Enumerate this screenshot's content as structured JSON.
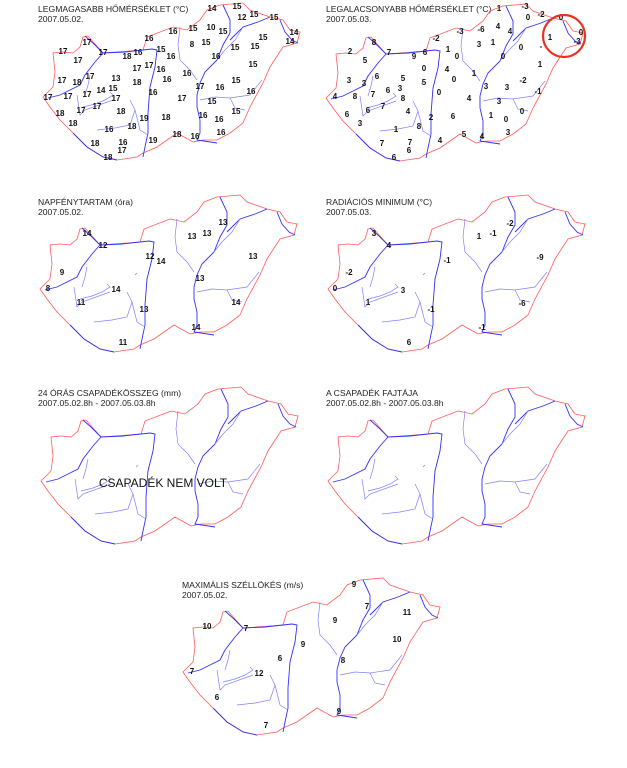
{
  "colors": {
    "border": "#ff5a5a",
    "river": "#3030ff",
    "highlight_circle": "#e8321e"
  },
  "panels": [
    {
      "title": "LEGMAGASABB HŐMÉRSÉKLET (°C)",
      "date": "2007.05.02.",
      "labels": [
        "14",
        "15",
        "12",
        "15",
        "15",
        "14",
        "14",
        "16",
        "15",
        "10",
        "15",
        "15",
        "8",
        "15",
        "15",
        "15",
        "16",
        "15",
        "16",
        "16",
        "17",
        "17",
        "17",
        "16",
        "18",
        "17",
        "17",
        "17",
        "16",
        "15",
        "16",
        "17",
        "13",
        "17",
        "18",
        "18",
        "16",
        "15",
        "17",
        "16",
        "14",
        "15",
        "16",
        "16",
        "17",
        "17",
        "17",
        "17",
        "17",
        "15",
        "17",
        "17",
        "18",
        "15",
        "18",
        "16",
        "16",
        "19",
        "18",
        "18",
        "18",
        "16",
        "16",
        "18",
        "16",
        "19",
        "18",
        "16",
        "17",
        "18"
      ]
    },
    {
      "title": "LEGALACSONYABB HŐMÉRSÉKLET (°C)",
      "date": "2007.05.03.",
      "labels": [
        "1",
        "-3",
        "0",
        "-2",
        "0",
        "0",
        "-3",
        "1",
        "-2",
        "-3",
        "-6",
        "4",
        "4",
        "3",
        "1",
        "0",
        "-",
        "8",
        "2",
        "7",
        "9",
        "6",
        "1",
        "0",
        "0",
        "5",
        "0",
        "4",
        "1",
        "1",
        "6",
        "5",
        "3",
        "3",
        "5",
        "0",
        "-2",
        "3",
        "3",
        "6",
        "3",
        "0",
        "-1",
        "4",
        "8",
        "7",
        "8",
        "4",
        "3",
        "6",
        "7",
        "4",
        "0",
        "6",
        "1",
        "0",
        "2",
        "6",
        "3",
        "8",
        "1",
        "3",
        "5",
        "4",
        "4",
        "7",
        "7",
        "6",
        "6"
      ],
      "highlight": "red-circle"
    },
    {
      "title": "NAPFÉNYTARTAM (óra)",
      "date": "2007.05.02.",
      "labels": [
        "14",
        "12",
        "12",
        "14",
        "13",
        "13",
        "13",
        "13",
        "9",
        "13",
        "8",
        "14",
        "11",
        "13",
        "14",
        "14",
        "11"
      ]
    },
    {
      "title": "RADIÁCIÓS MINIMUM (°C)",
      "date": "2007.05.03.",
      "labels": [
        "3",
        "4",
        "-2",
        "1",
        "-1",
        "-1",
        "-9",
        "-2",
        "0",
        "3",
        "1",
        "-1",
        "-6",
        "-1",
        "6"
      ]
    },
    {
      "title": "24 ÓRÁS CSAPADÉKÖSSZEG (mm)",
      "date": "2007.05.02.8h - 2007.05.03.8h",
      "note": "CSAPADÉK NEM VOLT",
      "labels": []
    },
    {
      "title": "A CSAPADÉK FAJTÁJA",
      "date": "2007.05.02.8h - 2007.05.03.8h",
      "labels": []
    },
    {
      "title": "MAXIMÁLIS SZÉLLÖKÉS (m/s)",
      "date": "2007.05.02.",
      "labels": [
        "9",
        "7",
        "11",
        "10",
        "7",
        "9",
        "10",
        "9",
        "6",
        "8",
        "7",
        "12",
        "6",
        "9",
        "7"
      ]
    }
  ]
}
